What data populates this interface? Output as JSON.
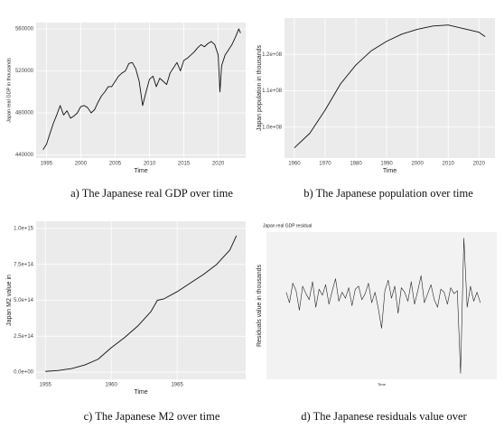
{
  "chart_data": [
    {
      "type": "line",
      "caption": "a) The Japanese real GDP over time",
      "xlabel": "Time",
      "ylabel": "Japan real GDP in thousands",
      "color": "#111111",
      "background": "#ebebeb",
      "grid": true,
      "x": [
        1994.5,
        1995,
        1995.5,
        1996,
        1996.5,
        1997,
        1997.5,
        1998,
        1998.5,
        1999,
        1999.5,
        2000,
        2000.5,
        2001,
        2001.5,
        2002,
        2002.5,
        2003,
        2003.5,
        2004,
        2004.5,
        2005,
        2005.5,
        2006,
        2006.5,
        2007,
        2007.5,
        2008,
        2008.5,
        2009,
        2009.5,
        2010,
        2010.5,
        2011,
        2011.5,
        2012,
        2012.5,
        2013,
        2013.5,
        2014,
        2014.5,
        2015,
        2015.5,
        2016,
        2016.5,
        2017,
        2017.5,
        2018,
        2018.5,
        2019,
        2019.5,
        2020,
        2020.25,
        2020.5,
        2021,
        2021.5,
        2022,
        2022.5,
        2023,
        2023.25
      ],
      "values": [
        445000,
        450000,
        460000,
        470000,
        478000,
        487000,
        478000,
        482000,
        475000,
        477000,
        480000,
        486000,
        487000,
        485000,
        480000,
        483000,
        490000,
        496000,
        500000,
        505000,
        505000,
        510000,
        515000,
        518000,
        520000,
        527000,
        528000,
        522000,
        510000,
        487000,
        500000,
        512000,
        515000,
        505000,
        513000,
        510000,
        507000,
        518000,
        523000,
        528000,
        520000,
        530000,
        532000,
        535000,
        538000,
        542000,
        545000,
        543000,
        546000,
        548000,
        545000,
        535000,
        500000,
        525000,
        535000,
        540000,
        545000,
        552000,
        560000,
        556000
      ],
      "xlim": [
        1993.5,
        2024
      ],
      "ylim": [
        437000,
        566000
      ],
      "xticks": [
        1995,
        2000,
        2005,
        2010,
        2015,
        2020
      ],
      "yticks": [
        440000,
        480000,
        520000,
        560000
      ]
    },
    {
      "type": "line",
      "caption": "b) The Japanese population over time",
      "xlabel": "Time",
      "ylabel": "Japan population in thousands",
      "color": "#111111",
      "background": "#ebebeb",
      "grid": true,
      "x": [
        1960,
        1965,
        1970,
        1975,
        1980,
        1985,
        1990,
        1995,
        2000,
        2005,
        2010,
        2015,
        2020,
        2022
      ],
      "values": [
        94300000,
        98300000,
        104700000,
        111900000,
        117100000,
        121000000,
        123600000,
        125600000,
        126900000,
        127800000,
        128100000,
        127100000,
        126100000,
        124900000
      ],
      "xlim": [
        1956.8,
        2025.2
      ],
      "ylim": [
        91500000,
        130000000
      ],
      "xticks": [
        1960,
        1970,
        1980,
        1990,
        2000,
        2010,
        2020
      ],
      "yticks": [
        {
          "value": 100000000,
          "label": "1.0e+08"
        },
        {
          "value": 110000000,
          "label": "1.1e+08"
        },
        {
          "value": 120000000,
          "label": "1.2e+08"
        }
      ]
    },
    {
      "type": "line",
      "caption": "c) The Japanese M2 over time",
      "xlabel": "Time",
      "ylabel": "Japan M2 value in",
      "color": "#111111",
      "background": "#ebebeb",
      "grid": true,
      "x": [
        1955,
        1956,
        1957,
        1958,
        1959,
        1959.5,
        1960,
        1961,
        1962,
        1963,
        1963.5,
        1964,
        1965,
        1966,
        1967,
        1968,
        1969,
        1969.5
      ],
      "values": [
        5000000000000,
        12000000000000,
        25000000000000,
        50000000000000,
        90000000000000,
        130000000000000,
        170000000000000,
        240000000000000,
        320000000000000,
        420000000000000,
        500000000000000,
        510000000000000,
        560000000000000,
        620000000000000,
        680000000000000,
        750000000000000,
        850000000000000,
        950000000000000
      ],
      "xlim": [
        1954.3,
        1970.2
      ],
      "ylim": [
        -50000000000000,
        1050000000000000
      ],
      "xticks": [
        1955,
        1960,
        1965
      ],
      "yticks": [
        {
          "value": 0,
          "label": "0.0e+00"
        },
        {
          "value": 250000000000000,
          "label": "2.5e+14"
        },
        {
          "value": 500000000000000,
          "label": "5.0e+14"
        },
        {
          "value": 750000000000000,
          "label": "7.5e+14"
        },
        {
          "value": 1000000000000000,
          "label": "1.0e+15"
        }
      ]
    },
    {
      "type": "line",
      "caption": "d) The Japanese residuals value over",
      "title": "Japan real GDP residual",
      "xlabel": "Time",
      "ylabel": "Residuals value in thousands",
      "color": "#222222",
      "background": "#f2f2f2",
      "grid": true,
      "x": [
        1994,
        1994.5,
        1995,
        1995.5,
        1996,
        1996.5,
        1997,
        1997.5,
        1998,
        1998.5,
        1999,
        1999.5,
        2000,
        2000.5,
        2001,
        2001.5,
        2002,
        2002.5,
        2003,
        2003.5,
        2004,
        2004.5,
        2005,
        2005.5,
        2006,
        2006.5,
        2007,
        2007.5,
        2008,
        2008.5,
        2009,
        2009.5,
        2010,
        2010.5,
        2011,
        2011.5,
        2012,
        2012.5,
        2013,
        2013.5,
        2014,
        2014.5,
        2015,
        2015.5,
        2016,
        2016.5,
        2017,
        2017.5,
        2018,
        2018.5,
        2019,
        2019.5,
        2020,
        2020.5,
        2021,
        2021.5,
        2022,
        2022.5,
        2023,
        2023.5
      ],
      "values": [
        2,
        -5,
        8,
        3,
        -10,
        6,
        1,
        -3,
        9,
        -8,
        4,
        0,
        7,
        -6,
        3,
        11,
        -4,
        2,
        -2,
        5,
        -7,
        4,
        6,
        -3,
        1,
        8,
        -5,
        2,
        -9,
        -22,
        3,
        10,
        -2,
        6,
        -12,
        5,
        2,
        -4,
        9,
        -6,
        3,
        13,
        -5,
        1,
        7,
        -3,
        -8,
        4,
        2,
        -6,
        5,
        1,
        3,
        -52,
        38,
        -8,
        6,
        -4,
        2,
        -5
      ],
      "xlim": [
        1991,
        2026
      ],
      "ylim": [
        -56,
        42
      ]
    }
  ]
}
